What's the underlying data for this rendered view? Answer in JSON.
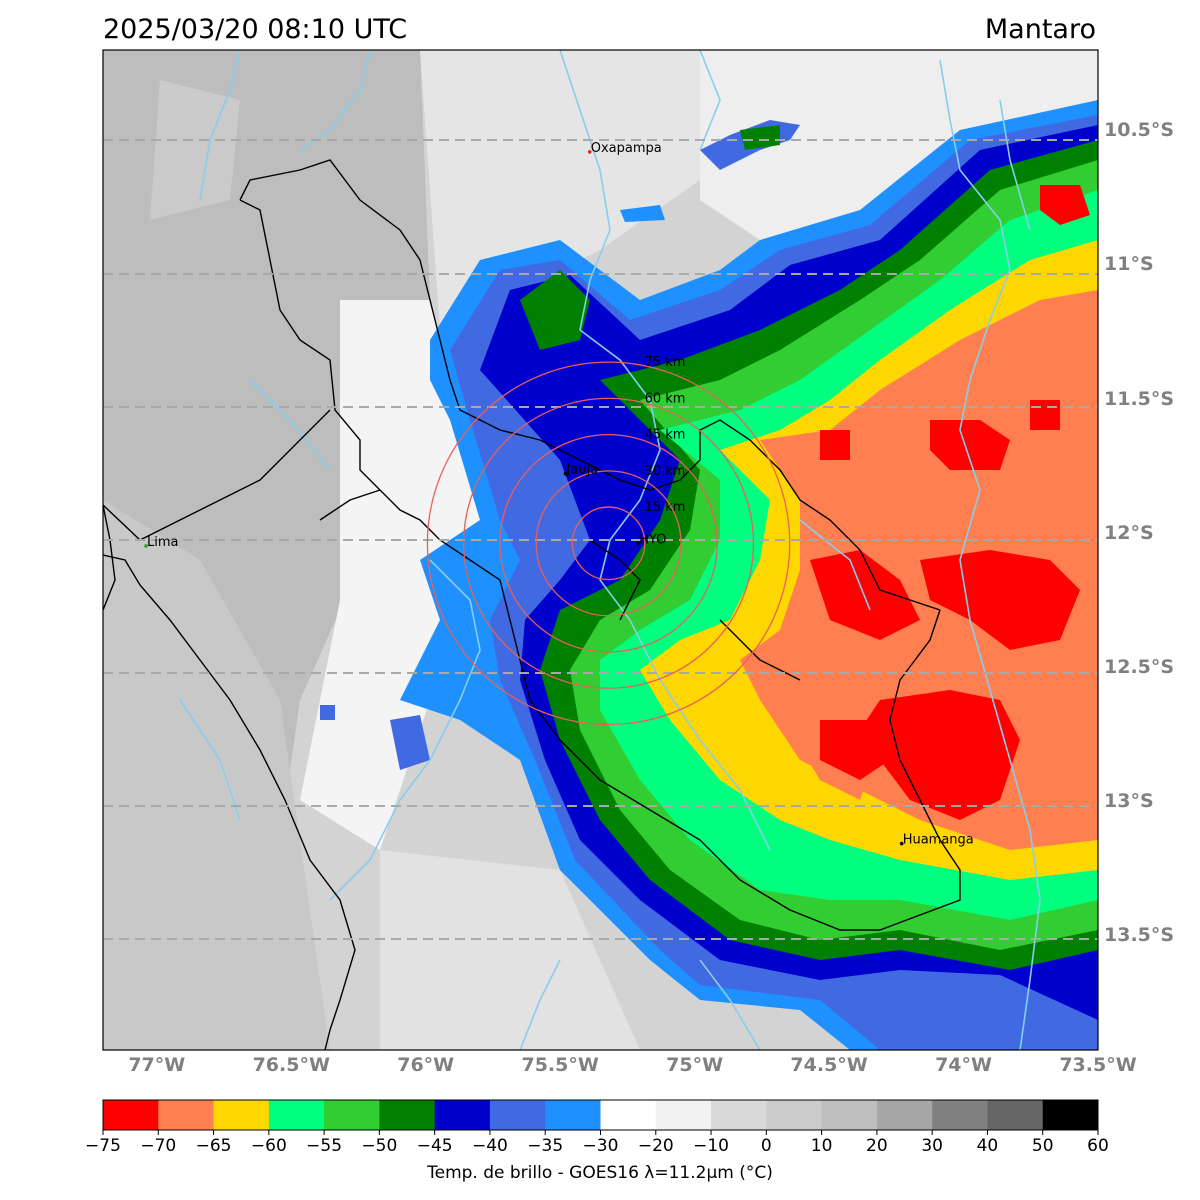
{
  "header": {
    "datetime": "2025/03/20 08:10 UTC",
    "region": "Mantaro"
  },
  "map": {
    "lon_range": [
      -77.2,
      -73.5
    ],
    "lat_range": [
      -13.93,
      -10.2
    ],
    "lat_ticks": [
      {
        "value": -10.5,
        "label": "10.5°S"
      },
      {
        "value": -11.0,
        "label": "11°S"
      },
      {
        "value": -11.5,
        "label": "11.5°S"
      },
      {
        "value": -12.0,
        "label": "12°S"
      },
      {
        "value": -12.5,
        "label": "12.5°S"
      },
      {
        "value": -13.0,
        "label": "13°S"
      },
      {
        "value": -13.5,
        "label": "13.5°S"
      }
    ],
    "lon_ticks": [
      {
        "value": -77.0,
        "label": "77°W"
      },
      {
        "value": -76.5,
        "label": "76.5°W"
      },
      {
        "value": -76.0,
        "label": "76°W"
      },
      {
        "value": -75.5,
        "label": "75.5°W"
      },
      {
        "value": -75.0,
        "label": "75°W"
      },
      {
        "value": -74.5,
        "label": "74.5°W"
      },
      {
        "value": -74.0,
        "label": "74°W"
      },
      {
        "value": -73.5,
        "label": "73.5°W"
      }
    ],
    "cities": [
      {
        "name": "Oxapampa",
        "lon": -75.39,
        "lat": -10.58,
        "color": "#d62728"
      },
      {
        "name": "Jauja",
        "lon": -75.48,
        "lat": -11.78,
        "color": "#000000"
      },
      {
        "name": "Lima",
        "lon": -77.04,
        "lat": -12.05,
        "color": "#2ca02c"
      },
      {
        "name": "HYO",
        "lon": -75.21,
        "lat": -12.04,
        "color": "#000000"
      },
      {
        "name": "Huamanga",
        "lon": -74.23,
        "lat": -13.16,
        "color": "#000000"
      }
    ],
    "radar_center": {
      "lon": -75.32,
      "lat": -12.04
    },
    "range_rings": [
      {
        "label": "15 km",
        "km": 15
      },
      {
        "label": "30 km",
        "km": 30
      },
      {
        "label": "45 km",
        "km": 45
      },
      {
        "label": "60 km",
        "km": 60
      },
      {
        "label": "75 km",
        "km": 75
      }
    ]
  },
  "colorbar": {
    "title": "Temp. de brillo - GOES16 λ=11.2μm (°C)",
    "boundaries": [
      -75,
      -70,
      -65,
      -60,
      -55,
      -50,
      -45,
      -40,
      -35,
      -30,
      -20,
      -10,
      0,
      10,
      20,
      30,
      40,
      50,
      60
    ],
    "tick_labels": [
      "−75",
      "−70",
      "−65",
      "−60",
      "−55",
      "−50",
      "−45",
      "−40",
      "−35",
      "−30",
      "−20",
      "−10",
      "0",
      "10",
      "20",
      "30",
      "40",
      "50",
      "60"
    ],
    "colors": [
      "#ff0000",
      "#ff7f50",
      "#ffd700",
      "#00ff7f",
      "#32cd32",
      "#008000",
      "#0000cd",
      "#4169e1",
      "#1e90ff",
      "#ffffff",
      "#f2f2f2",
      "#d9d9d9",
      "#cccccc",
      "#bfbfbf",
      "#a6a6a6",
      "#808080",
      "#666666",
      "#000000"
    ]
  }
}
